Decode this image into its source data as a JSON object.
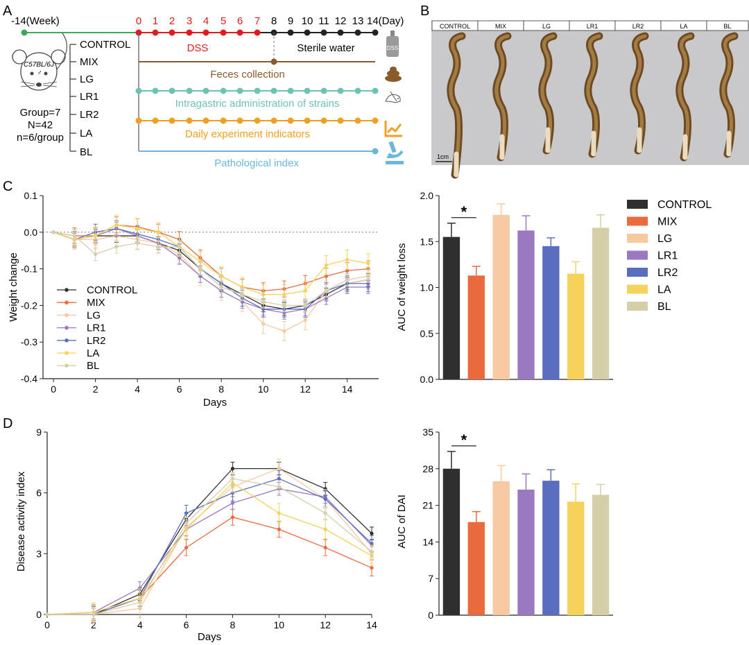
{
  "colors": {
    "CONTROL": "#2f2f2f",
    "MIX": "#ea6a3d",
    "LG": "#f7c9a0",
    "LR1": "#9b79c0",
    "LR2": "#5a6ec0",
    "LA": "#f5d35a",
    "BL": "#d4cfa8",
    "dss_red": "#e31a1c",
    "water_black": "#222222",
    "week_green": "#3aa85a",
    "feces_brown": "#8a5a2b",
    "teal": "#6cc3b4",
    "orange": "#f0a020",
    "blue": "#6bb7dc"
  },
  "panelA": {
    "panel_label": "A",
    "week_label": "-14(Week)",
    "day_labels": [
      "0",
      "1",
      "2",
      "3",
      "4",
      "5",
      "6",
      "7",
      "8",
      "9",
      "10",
      "11",
      "12",
      "13",
      "14(Day)"
    ],
    "mouse_strain": "C57BL/6J",
    "mouse_sex": "♂",
    "group_info": [
      "Group=7",
      "N=42",
      "n=6/group"
    ],
    "groups": [
      "CONTROL",
      "MIX",
      "LG",
      "LR1",
      "LR2",
      "LA",
      "BL"
    ],
    "dss_label": "DSS",
    "water_label": "Sterile water",
    "lines": [
      {
        "label": "Feces collection",
        "color_key": "feces_brown",
        "icon": "feces-icon"
      },
      {
        "label": "Intragastric administration of strains",
        "color_key": "teal",
        "icon": "mouse-gavage-icon"
      },
      {
        "label": "Daily  experiment  indicators",
        "color_key": "orange",
        "icon": "line-chart-icon"
      },
      {
        "label": "Pathological index",
        "color_key": "blue",
        "icon": "microscope-icon"
      }
    ],
    "dss_bottle_label": "DSS"
  },
  "panelB": {
    "panel_label": "B",
    "groups": [
      "CONTROL",
      "MIX",
      "LG",
      "LR1",
      "LR2",
      "LA",
      "BL"
    ],
    "scale_bar_label": "1cm"
  },
  "chart_data": [
    {
      "id": "C-line",
      "type": "line",
      "panel_label": "C",
      "xlabel": "Days",
      "ylabel": "Weight change",
      "xlim": [
        -0.5,
        15.5
      ],
      "ylim": [
        -0.4,
        0.1
      ],
      "xticks": [
        0,
        2,
        4,
        6,
        8,
        10,
        12,
        14
      ],
      "yticks": [
        0.1,
        0.0,
        -0.1,
        -0.2,
        -0.3,
        -0.4
      ],
      "ytick_labels": [
        "0.1",
        "0.0",
        "-0.1",
        "-0.2",
        "-0.3",
        "-0.4"
      ],
      "x": [
        0,
        1,
        2,
        3,
        4,
        5,
        6,
        7,
        8,
        9,
        10,
        11,
        12,
        13,
        14,
        15
      ],
      "legend": [
        "CONTROL",
        "MIX",
        "LG",
        "LR1",
        "LR2",
        "LA",
        "BL"
      ],
      "series": [
        {
          "name": "CONTROL",
          "values": [
            0,
            -0.02,
            -0.01,
            -0.01,
            -0.01,
            -0.03,
            -0.05,
            -0.1,
            -0.14,
            -0.17,
            -0.2,
            -0.21,
            -0.2,
            -0.17,
            -0.14,
            -0.13
          ]
        },
        {
          "name": "MIX",
          "values": [
            0,
            -0.01,
            -0.01,
            0.02,
            0.015,
            0.0,
            -0.02,
            -0.07,
            -0.12,
            -0.15,
            -0.16,
            -0.155,
            -0.14,
            -0.12,
            -0.105,
            -0.1
          ]
        },
        {
          "name": "LG",
          "values": [
            0,
            -0.02,
            -0.02,
            -0.01,
            -0.02,
            -0.03,
            -0.06,
            -0.12,
            -0.16,
            -0.19,
            -0.25,
            -0.27,
            -0.24,
            -0.16,
            -0.14,
            -0.13
          ]
        },
        {
          "name": "LR1",
          "values": [
            0,
            -0.02,
            -0.01,
            0.01,
            -0.01,
            -0.03,
            -0.07,
            -0.12,
            -0.16,
            -0.19,
            -0.21,
            -0.22,
            -0.21,
            -0.18,
            -0.15,
            -0.15
          ]
        },
        {
          "name": "LR2",
          "values": [
            0,
            -0.02,
            0.0,
            0.01,
            -0.005,
            -0.02,
            -0.04,
            -0.1,
            -0.14,
            -0.18,
            -0.21,
            -0.21,
            -0.21,
            -0.16,
            -0.14,
            -0.14
          ]
        },
        {
          "name": "LA",
          "values": [
            0,
            -0.02,
            -0.01,
            0.02,
            0.01,
            0.0,
            -0.04,
            -0.08,
            -0.12,
            -0.15,
            -0.17,
            -0.17,
            -0.16,
            -0.09,
            -0.075,
            -0.085
          ]
        },
        {
          "name": "BL",
          "values": [
            0,
            -0.01,
            -0.06,
            -0.04,
            -0.03,
            -0.04,
            -0.04,
            -0.1,
            -0.15,
            -0.17,
            -0.19,
            -0.2,
            -0.2,
            -0.16,
            -0.13,
            -0.12
          ]
        }
      ],
      "zero_line": true
    },
    {
      "id": "C-bar",
      "type": "bar",
      "ylabel": "AUC of weight loss",
      "ylim": [
        0,
        2.0
      ],
      "yticks": [
        0,
        0.5,
        1.0,
        1.5,
        2.0
      ],
      "ytick_labels": [
        "0.0",
        "0.5",
        "1.0",
        "1.5",
        "2.0"
      ],
      "categories": [
        "CONTROL",
        "MIX",
        "LG",
        "LR1",
        "LR2",
        "LA",
        "BL"
      ],
      "values": [
        1.55,
        1.13,
        1.79,
        1.62,
        1.45,
        1.15,
        1.65
      ],
      "errors": [
        0.15,
        0.1,
        0.12,
        0.16,
        0.09,
        0.13,
        0.14
      ],
      "legend": [
        "CONTROL",
        "MIX",
        "LG",
        "LR1",
        "LR2",
        "LA",
        "BL"
      ],
      "significance": {
        "between": [
          "CONTROL",
          "MIX"
        ],
        "label": "*"
      }
    },
    {
      "id": "D-line",
      "type": "line",
      "panel_label": "D",
      "xlabel": "Days",
      "ylabel": "Disease activity index",
      "xlim": [
        0,
        14
      ],
      "ylim": [
        0,
        9
      ],
      "xticks": [
        0,
        2,
        4,
        6,
        8,
        10,
        12,
        14
      ],
      "yticks": [
        0,
        3,
        6,
        9
      ],
      "ytick_labels": [
        "0",
        "3",
        "6",
        "9"
      ],
      "x": [
        0,
        2,
        4,
        6,
        8,
        10,
        12,
        14
      ],
      "series": [
        {
          "name": "CONTROL",
          "values": [
            0,
            0.0,
            1.0,
            4.7,
            7.2,
            7.2,
            6.2,
            4.0
          ]
        },
        {
          "name": "MIX",
          "values": [
            0,
            0.1,
            0.8,
            3.3,
            4.8,
            4.2,
            3.3,
            2.3
          ]
        },
        {
          "name": "LG",
          "values": [
            0,
            0.0,
            0.3,
            4.3,
            6.3,
            7.2,
            5.7,
            3.0
          ]
        },
        {
          "name": "LR1",
          "values": [
            0,
            0.1,
            1.3,
            4.2,
            5.5,
            6.2,
            5.8,
            3.4
          ]
        },
        {
          "name": "LR2",
          "values": [
            0,
            0.0,
            0.8,
            5.0,
            6.0,
            6.7,
            5.7,
            3.5
          ]
        },
        {
          "name": "LA",
          "values": [
            0,
            0.1,
            0.8,
            4.2,
            6.5,
            5.0,
            4.2,
            2.9
          ]
        },
        {
          "name": "BL",
          "values": [
            0,
            0.0,
            0.6,
            4.5,
            6.7,
            6.3,
            5.0,
            3.1
          ]
        }
      ]
    },
    {
      "id": "D-bar",
      "type": "bar",
      "ylabel": "AUC of DAI",
      "ylim": [
        0,
        35
      ],
      "yticks": [
        0,
        7,
        14,
        21,
        28,
        35
      ],
      "ytick_labels": [
        "0",
        "7",
        "14",
        "21",
        "28",
        "35"
      ],
      "categories": [
        "CONTROL",
        "MIX",
        "LG",
        "LR1",
        "LR2",
        "LA",
        "BL"
      ],
      "values": [
        28.0,
        17.8,
        25.6,
        24.0,
        25.7,
        21.7,
        23.0
      ],
      "errors": [
        3.3,
        2.0,
        3.0,
        3.0,
        2.1,
        3.4,
        2.0
      ],
      "significance": {
        "between": [
          "CONTROL",
          "MIX"
        ],
        "label": "*"
      }
    }
  ]
}
